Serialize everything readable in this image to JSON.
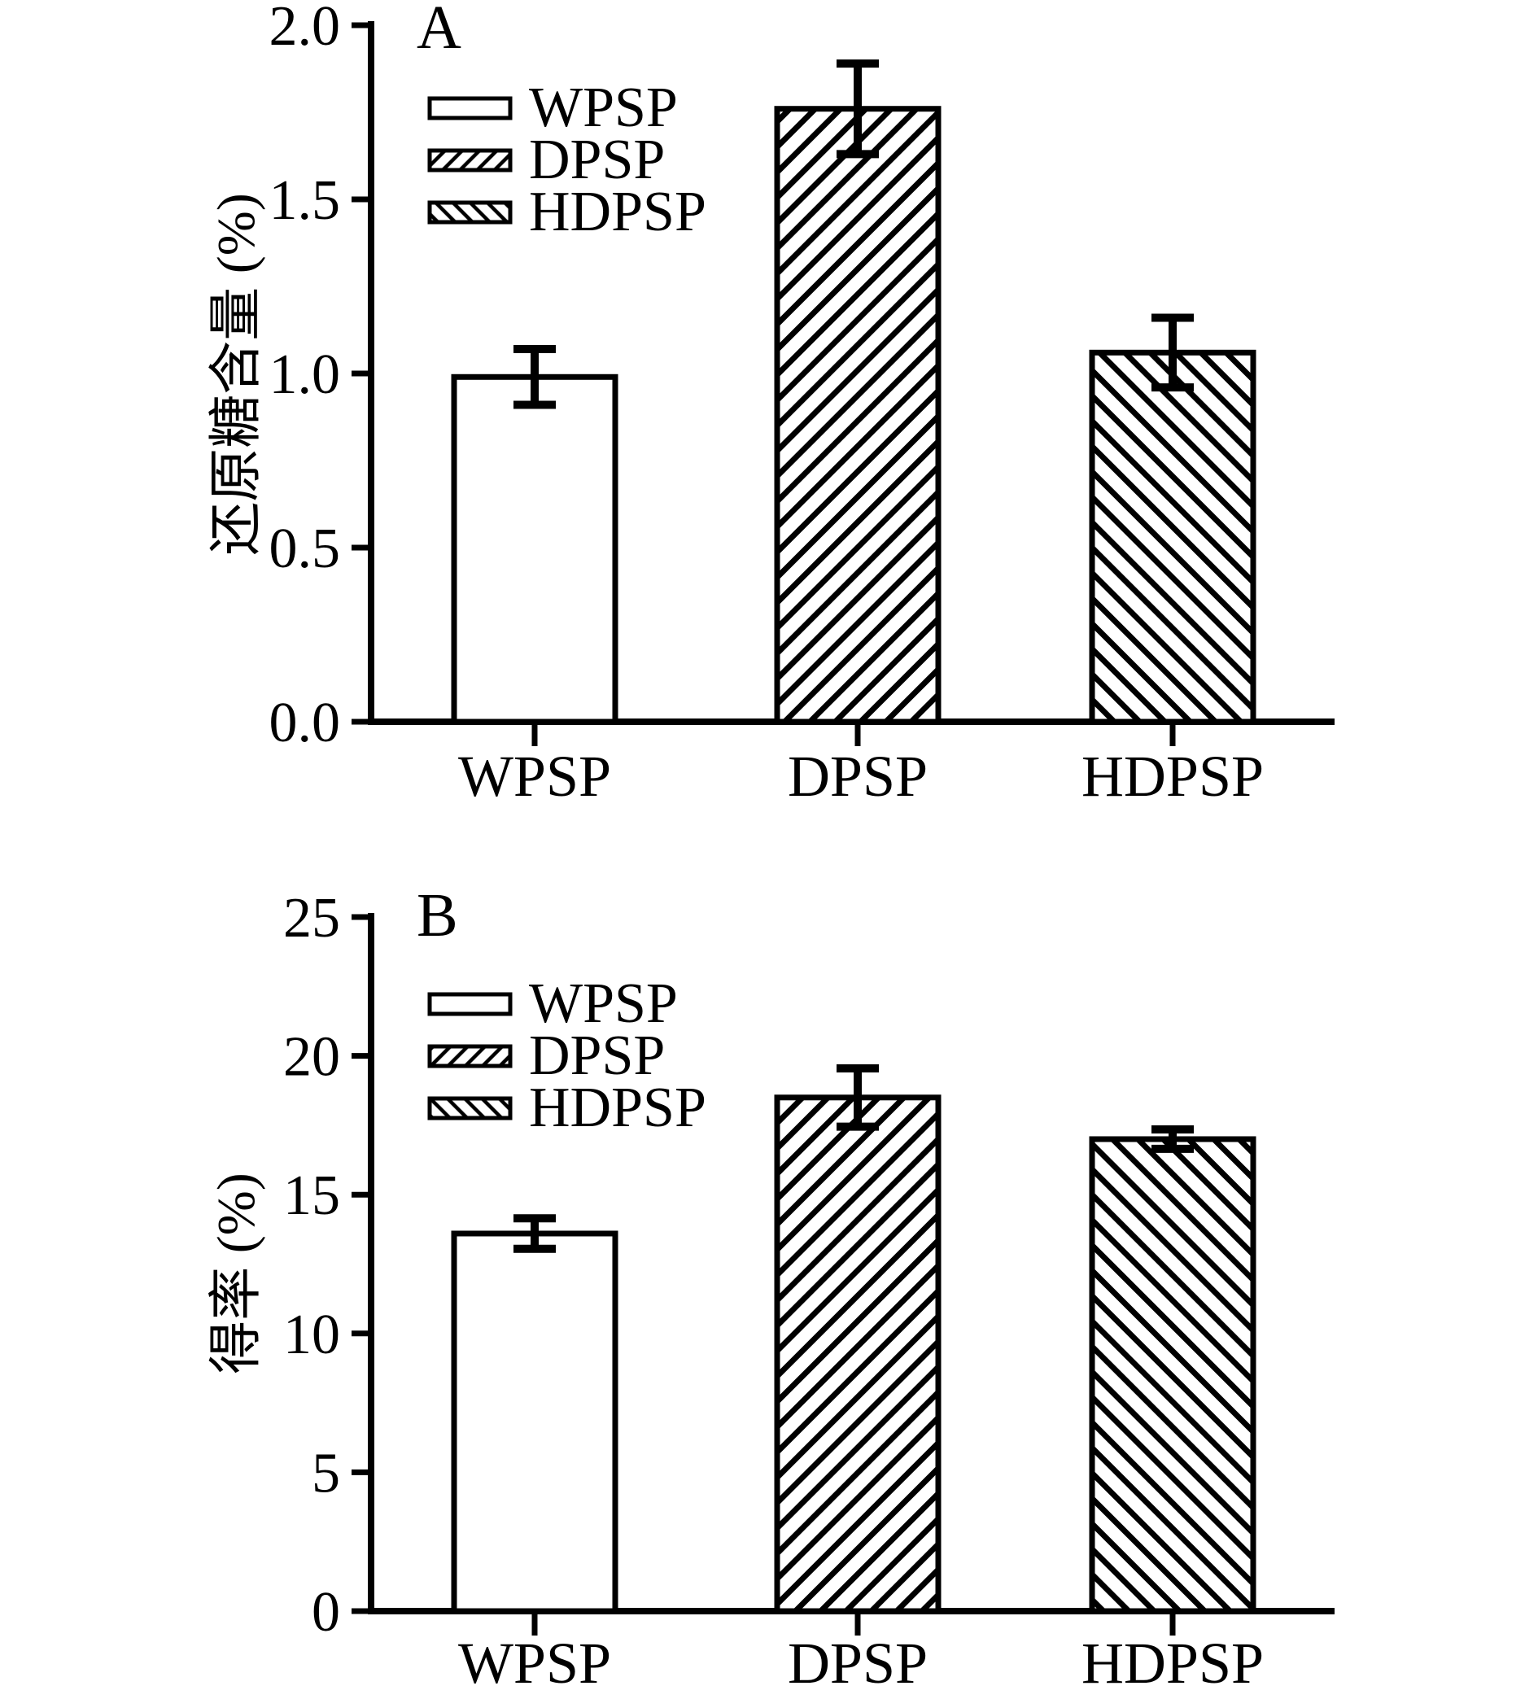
{
  "figure": {
    "background_color": "#ffffff",
    "ink_color": "#000000",
    "bar_fill_color": "#ffffff"
  },
  "chart_data": [
    {
      "panel_label": "A",
      "type": "bar",
      "categories": [
        "WPSP",
        "DPSP",
        "HDPSP"
      ],
      "values": [
        0.99,
        1.76,
        1.06
      ],
      "errors": [
        0.08,
        0.13,
        0.1
      ],
      "ylabel": "还原糖含量 (%)",
      "xlabel": "",
      "ylim": [
        0,
        2.0
      ],
      "yticks": [
        0.0,
        0.5,
        1.0,
        1.5,
        2.0
      ],
      "ytick_labels": [
        "0.0",
        "0.5",
        "1.0",
        "1.5",
        "2.0"
      ],
      "grid": false,
      "legend_position": "top-left",
      "legend": [
        {
          "label": "WPSP",
          "hatch": "none"
        },
        {
          "label": "DPSP",
          "hatch": "diagonal-forward"
        },
        {
          "label": "HDPSP",
          "hatch": "diagonal-backward"
        }
      ]
    },
    {
      "panel_label": "B",
      "type": "bar",
      "categories": [
        "WPSP",
        "DPSP",
        "HDPSP"
      ],
      "values": [
        13.6,
        18.5,
        17.0
      ],
      "errors": [
        0.55,
        1.05,
        0.35
      ],
      "ylabel": "得率 (%)",
      "xlabel": "",
      "ylim": [
        0,
        25
      ],
      "yticks": [
        0,
        5,
        10,
        15,
        20,
        25
      ],
      "ytick_labels": [
        "0",
        "5",
        "10",
        "15",
        "20",
        "25"
      ],
      "grid": false,
      "legend_position": "top-left",
      "legend": [
        {
          "label": "WPSP",
          "hatch": "none"
        },
        {
          "label": "DPSP",
          "hatch": "diagonal-forward"
        },
        {
          "label": "HDPSP",
          "hatch": "diagonal-backward"
        }
      ]
    }
  ]
}
